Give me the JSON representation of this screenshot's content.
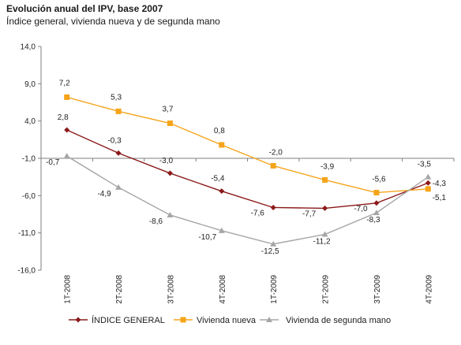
{
  "title": "Evolución anual del IPV, base 2007",
  "subtitle": "Índice general, vivienda nueva y de segunda mano",
  "chart_data": {
    "type": "line",
    "title": "Evolución anual del IPV, base 2007",
    "subtitle": "Índice general, vivienda nueva y de segunda mano",
    "categories": [
      "1T-2008",
      "2T-2008",
      "3T-2008",
      "4T-2008",
      "1T-2009",
      "2T-2009",
      "3T-2009",
      "4T-2009"
    ],
    "ylim": [
      -16,
      14
    ],
    "yticks": [
      "14,0",
      "9,0",
      "4,0",
      "-1,0",
      "-6,0",
      "-11,0",
      "-16,0"
    ],
    "legend_position": "bottom",
    "grid": false,
    "series": [
      {
        "name": "ÍNDICE GENERAL",
        "color": "#8b1a1a",
        "marker": "diamond",
        "values": [
          2.8,
          -0.3,
          -3.0,
          -5.4,
          -7.6,
          -7.7,
          -7.0,
          -4.3
        ],
        "labels": [
          "2,8",
          "-0,3",
          "-3,0",
          "-5,4",
          "-7,6",
          "-7,7",
          "-7,0",
          "-4,3"
        ]
      },
      {
        "name": "Vivienda nueva",
        "color": "#f5a41a",
        "marker": "square",
        "values": [
          7.2,
          5.3,
          3.7,
          0.8,
          -2.0,
          -3.9,
          -5.6,
          -5.1
        ],
        "labels": [
          "7,2",
          "5,3",
          "3,7",
          "0,8",
          "-2,0",
          "-3,9",
          "-5,6",
          "-5,1"
        ]
      },
      {
        "name": "Vivienda de segunda mano",
        "color": "#a6a6a6",
        "marker": "triangle",
        "values": [
          -0.7,
          -4.9,
          -8.6,
          -10.7,
          -12.5,
          -11.2,
          -8.3,
          -3.5
        ],
        "labels": [
          "-0,7",
          "-4,9",
          "-8,6",
          "-10,7",
          "-12,5",
          "-11,2",
          "-8,3",
          "-3,5"
        ]
      }
    ]
  }
}
